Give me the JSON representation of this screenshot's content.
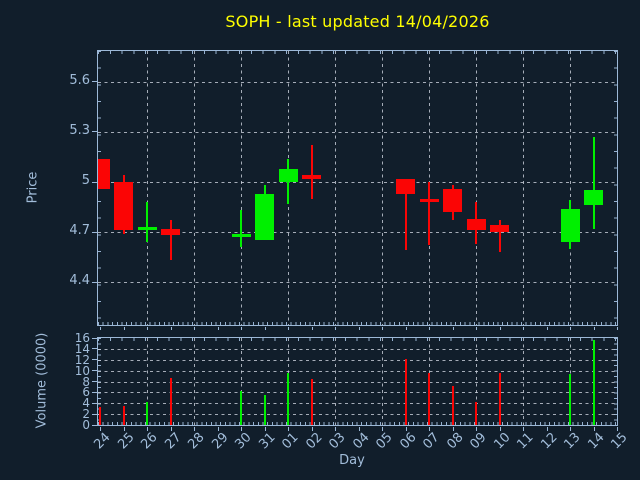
{
  "colors": {
    "background": "#111e2b",
    "spine": "#9db9d8",
    "text": "#a2bdda",
    "title": "#ffff00",
    "grid": "#cbd1dc",
    "up": "#00f000",
    "down": "#fb0505"
  },
  "chart_data": {
    "type": "candlestick",
    "title": "SOPH - last updated 14/04/2026",
    "xlabel": "Day",
    "panels": {
      "price_ylabel": "Price",
      "volume_ylabel": "Volume (0000)"
    },
    "x_categories": [
      "24",
      "25",
      "26",
      "27",
      "28",
      "29",
      "30",
      "31",
      "01",
      "02",
      "03",
      "04",
      "05",
      "06",
      "07",
      "08",
      "09",
      "10",
      "11",
      "12",
      "13",
      "14",
      "15"
    ],
    "grid_day_indices": [
      2,
      4,
      6,
      8,
      10,
      12,
      14,
      16,
      18,
      20
    ],
    "price_axis": {
      "ylim": [
        4.14,
        5.79
      ],
      "grid": true,
      "ticks": [
        {
          "label": "5.6",
          "value": 5.6
        },
        {
          "label": "5.3",
          "value": 5.3
        },
        {
          "label": "5",
          "value": 5.0
        },
        {
          "label": "4.7",
          "value": 4.7
        },
        {
          "label": "4.4",
          "value": 4.4
        }
      ]
    },
    "volume_axis": {
      "ylim": [
        0,
        16
      ],
      "grid": true,
      "ticks": [
        {
          "label": "16",
          "value": 16
        },
        {
          "label": "14",
          "value": 14
        },
        {
          "label": "12",
          "value": 12
        },
        {
          "label": "10",
          "value": 10
        },
        {
          "label": "8",
          "value": 8
        },
        {
          "label": "6",
          "value": 6
        },
        {
          "label": "4",
          "value": 4
        },
        {
          "label": "2",
          "value": 2
        },
        {
          "label": "0",
          "value": 0
        }
      ]
    },
    "series": [
      {
        "day": "24",
        "x_index": 0,
        "open": 5.14,
        "high": 5.14,
        "low": 4.96,
        "close": 4.96,
        "volume": 3.3,
        "direction": "down"
      },
      {
        "day": "25",
        "x_index": 1,
        "open": 5.0,
        "high": 5.04,
        "low": 4.69,
        "close": 4.71,
        "volume": 3.5,
        "direction": "down"
      },
      {
        "day": "26",
        "x_index": 2,
        "open": 4.72,
        "high": 4.88,
        "low": 4.64,
        "close": 4.73,
        "volume": 4.2,
        "direction": "up"
      },
      {
        "day": "27",
        "x_index": 3,
        "open": 4.72,
        "high": 4.77,
        "low": 4.53,
        "close": 4.68,
        "volume": 8.6,
        "direction": "down"
      },
      {
        "day": "30",
        "x_index": 6,
        "open": 4.68,
        "high": 4.83,
        "low": 4.61,
        "close": 4.69,
        "volume": 6.3,
        "direction": "up"
      },
      {
        "day": "31",
        "x_index": 7,
        "open": 4.65,
        "high": 4.98,
        "low": 4.65,
        "close": 4.93,
        "volume": 5.5,
        "direction": "up"
      },
      {
        "day": "01",
        "x_index": 8,
        "open": 5.0,
        "high": 5.14,
        "low": 4.87,
        "close": 5.08,
        "volume": 9.5,
        "direction": "up"
      },
      {
        "day": "02",
        "x_index": 9,
        "open": 5.04,
        "high": 5.22,
        "low": 4.9,
        "close": 5.02,
        "volume": 8.4,
        "direction": "down"
      },
      {
        "day": "06",
        "x_index": 13,
        "open": 5.02,
        "high": 5.02,
        "low": 4.59,
        "close": 4.93,
        "volume": 12.2,
        "direction": "down"
      },
      {
        "day": "07",
        "x_index": 14,
        "open": 4.9,
        "high": 5.0,
        "low": 4.62,
        "close": 4.89,
        "volume": 9.5,
        "direction": "down"
      },
      {
        "day": "08",
        "x_index": 15,
        "open": 4.96,
        "high": 4.98,
        "low": 4.77,
        "close": 4.82,
        "volume": 7.1,
        "direction": "down"
      },
      {
        "day": "09",
        "x_index": 16,
        "open": 4.78,
        "high": 4.88,
        "low": 4.63,
        "close": 4.71,
        "volume": 4.2,
        "direction": "down"
      },
      {
        "day": "10",
        "x_index": 17,
        "open": 4.74,
        "high": 4.77,
        "low": 4.58,
        "close": 4.7,
        "volume": 9.5,
        "direction": "down"
      },
      {
        "day": "13",
        "x_index": 20,
        "open": 4.64,
        "high": 4.89,
        "low": 4.6,
        "close": 4.84,
        "volume": 9.3,
        "direction": "up"
      },
      {
        "day": "14",
        "x_index": 21,
        "open": 4.86,
        "high": 5.27,
        "low": 4.72,
        "close": 4.95,
        "volume": 15.6,
        "direction": "up"
      }
    ]
  }
}
